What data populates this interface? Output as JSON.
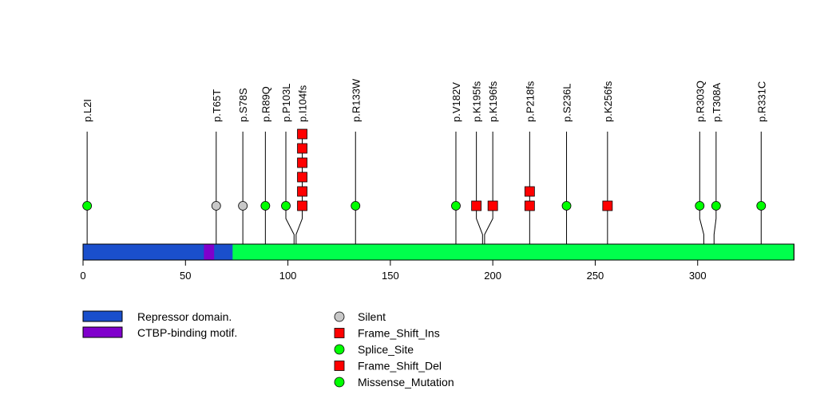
{
  "chart_data": {
    "type": "lollipop",
    "protein_length": 347,
    "x_ticks": [
      0,
      50,
      100,
      150,
      200,
      250,
      300
    ],
    "x_tick_labels": [
      "0",
      "50",
      "100",
      "150",
      "200",
      "250",
      "300"
    ],
    "domains": [
      {
        "name": "Repressor domain.",
        "start": 1,
        "end": 73,
        "color": "#1a4fcc"
      },
      {
        "name": "CTBP-binding motif.",
        "start": 60,
        "end": 64,
        "color": "#8000cc"
      }
    ],
    "backbone_color": "#00ff4c",
    "mutations": [
      {
        "label": "p.L2I",
        "position": 2,
        "draw_position": 2,
        "type": "Missense_Mutation",
        "count": 1
      },
      {
        "label": "p.T65T",
        "position": 65,
        "draw_position": 65,
        "type": "Silent",
        "count": 1
      },
      {
        "label": "p.S78S",
        "position": 78,
        "draw_position": 78,
        "type": "Silent",
        "count": 1
      },
      {
        "label": "p.R89Q",
        "position": 89,
        "draw_position": 89,
        "type": "Missense_Mutation",
        "count": 1
      },
      {
        "label": "p.P103L",
        "position": 103,
        "draw_position": 99,
        "type": "Missense_Mutation",
        "count": 1
      },
      {
        "label": "p.I104fs",
        "position": 104,
        "draw_position": 107,
        "type": "Frame_Shift_Ins",
        "count": 6
      },
      {
        "label": "p.R133W",
        "position": 133,
        "draw_position": 133,
        "type": "Missense_Mutation",
        "count": 1
      },
      {
        "label": "p.V182V",
        "position": 182,
        "draw_position": 182,
        "type": "Splice_Site",
        "count": 1
      },
      {
        "label": "p.K195fs",
        "position": 195,
        "draw_position": 192,
        "type": "Frame_Shift_Ins",
        "count": 1
      },
      {
        "label": "p.K196fs",
        "position": 196,
        "draw_position": 200,
        "type": "Frame_Shift_Ins",
        "count": 1
      },
      {
        "label": "p.P218fs",
        "position": 218,
        "draw_position": 218,
        "type": "Frame_Shift_Del",
        "count": 2
      },
      {
        "label": "p.S236L",
        "position": 236,
        "draw_position": 236,
        "type": "Missense_Mutation",
        "count": 1
      },
      {
        "label": "p.K256fs",
        "position": 256,
        "draw_position": 256,
        "type": "Frame_Shift_Del",
        "count": 1
      },
      {
        "label": "p.R303Q",
        "position": 303,
        "draw_position": 301,
        "type": "Missense_Mutation",
        "count": 1
      },
      {
        "label": "p.T308A",
        "position": 308,
        "draw_position": 309,
        "type": "Missense_Mutation",
        "count": 1
      },
      {
        "label": "p.R331C",
        "position": 331,
        "draw_position": 331,
        "type": "Missense_Mutation",
        "count": 1
      }
    ],
    "mutation_types": [
      {
        "name": "Silent",
        "shape": "circle",
        "color": "#c8c8c8"
      },
      {
        "name": "Frame_Shift_Ins",
        "shape": "square",
        "color": "#ff0000"
      },
      {
        "name": "Splice_Site",
        "shape": "circle",
        "color": "#00ff00"
      },
      {
        "name": "Frame_Shift_Del",
        "shape": "square",
        "color": "#ff0000"
      },
      {
        "name": "Missense_Mutation",
        "shape": "circle",
        "color": "#00ff00"
      }
    ]
  }
}
